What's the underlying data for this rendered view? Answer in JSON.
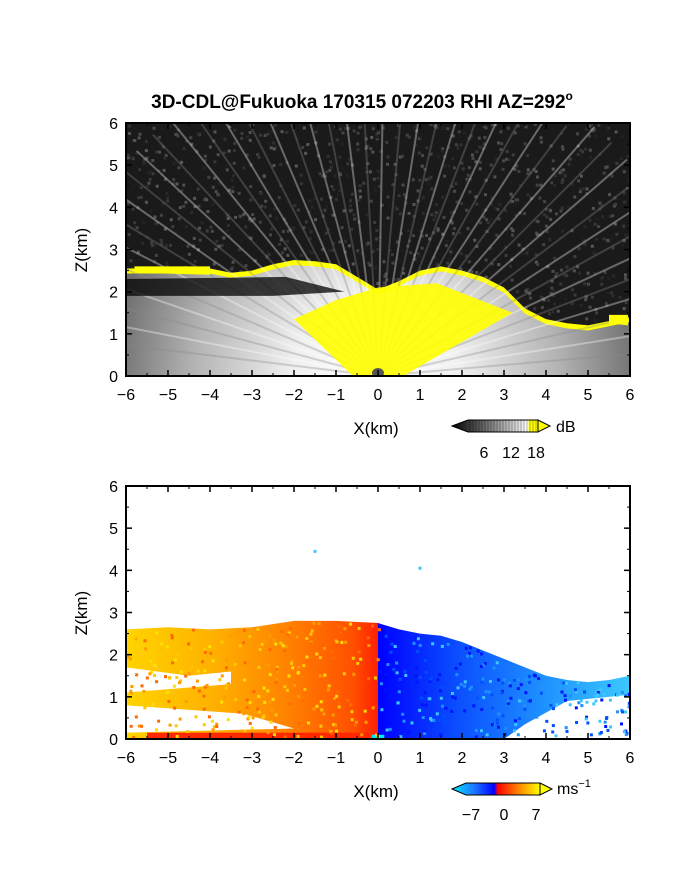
{
  "title": "3D-CDL@Fukuoka 170315 072203 RHI AZ=292",
  "title_suffix": "o",
  "chart_data": [
    {
      "type": "heatmap",
      "name": "reflectivity",
      "xlabel": "X(km)",
      "ylabel": "Z(km)",
      "xlim": [
        -6,
        6
      ],
      "ylim": [
        0,
        6
      ],
      "xticks": [
        "-6",
        "-5",
        "-4",
        "-3",
        "-2",
        "-1",
        "0",
        "1",
        "2",
        "3",
        "4",
        "5",
        "6"
      ],
      "yticks": [
        "0",
        "1",
        "2",
        "3",
        "4",
        "5",
        "6"
      ],
      "colorbar": {
        "unit": "dB",
        "ticks": [
          "6",
          "12",
          "18"
        ],
        "range": [
          0,
          20
        ],
        "colors": [
          "#000000",
          "#404040",
          "#808080",
          "#c0c0c0",
          "#ffffff",
          "#ffff00"
        ]
      },
      "cloud_top_profile": {
        "x": [
          -6,
          -5,
          -4,
          -3.5,
          -3,
          -2.5,
          -2,
          -1.5,
          -1,
          -0.5,
          0,
          0.5,
          1,
          1.5,
          2,
          2.5,
          3,
          3.5,
          4,
          4.5,
          5,
          5.5,
          6
        ],
        "z": [
          2.55,
          2.55,
          2.55,
          2.45,
          2.5,
          2.65,
          2.75,
          2.72,
          2.65,
          2.35,
          2.05,
          2.25,
          2.5,
          2.6,
          2.5,
          2.35,
          2.1,
          1.6,
          1.35,
          1.25,
          1.2,
          1.3,
          1.4
        ]
      }
    },
    {
      "type": "heatmap",
      "name": "doppler_velocity",
      "xlabel": "X(km)",
      "ylabel": "Z(km)",
      "xlim": [
        -6,
        6
      ],
      "ylim": [
        0,
        6
      ],
      "xticks": [
        "-6",
        "-5",
        "-4",
        "-3",
        "-2",
        "-1",
        "0",
        "1",
        "2",
        "3",
        "4",
        "5",
        "6"
      ],
      "yticks": [
        "0",
        "1",
        "2",
        "3",
        "4",
        "5",
        "6"
      ],
      "colorbar": {
        "unit": "ms",
        "unit_exp": "−1",
        "ticks": [
          "−7",
          "0",
          "7"
        ],
        "range": [
          -8,
          8
        ],
        "colors": [
          "#00e5ff",
          "#1e90ff",
          "#0000ff",
          "#ff0000",
          "#ff8000",
          "#ffff00"
        ]
      },
      "echo_top_profile": {
        "x": [
          -6,
          -5,
          -4,
          -3,
          -2,
          -1,
          0,
          0.5,
          1,
          1.5,
          2,
          2.5,
          3,
          3.5,
          4,
          4.5,
          5,
          5.5,
          6
        ],
        "z": [
          2.6,
          2.65,
          2.6,
          2.65,
          2.8,
          2.8,
          2.75,
          2.6,
          2.5,
          2.45,
          2.3,
          2.1,
          1.9,
          1.7,
          1.5,
          1.4,
          1.35,
          1.4,
          1.5
        ]
      },
      "isolated_points": [
        {
          "x": -1.5,
          "z": 4.45,
          "value": -7
        },
        {
          "x": 1.0,
          "z": 4.05,
          "value": -7
        }
      ]
    }
  ]
}
